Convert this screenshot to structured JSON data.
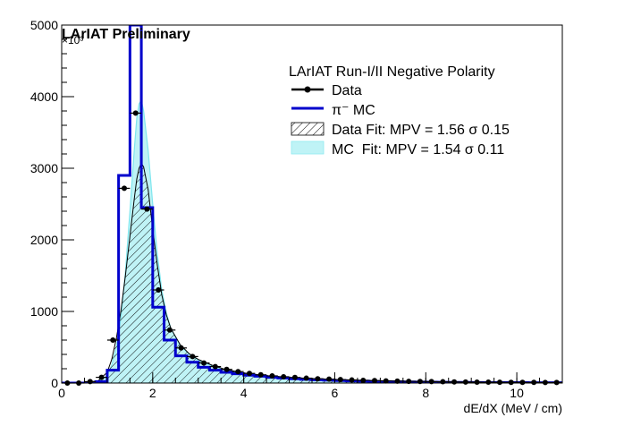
{
  "chart_data": {
    "type": "histogram",
    "title": "LArIAT Preliminary",
    "exponent_label": "×10³",
    "xlabel": "dE/dX (MeV / cm)",
    "ylabel": "",
    "xlim": [
      0,
      11
    ],
    "ylim": [
      0,
      5000
    ],
    "x_ticks": [
      0,
      2,
      4,
      6,
      8,
      10
    ],
    "x_minor_step": 0.5,
    "y_ticks": [
      0,
      1000,
      2000,
      3000,
      4000,
      5000
    ],
    "y_minor_step": 200,
    "legend": {
      "placement": "top-right",
      "header": "LArIAT Run-I/II Negative Polarity",
      "entries": [
        {
          "name": "Data",
          "style": "data-points"
        },
        {
          "name": "π⁻ MC",
          "style": "line"
        },
        {
          "name": "Data Fit: MPV = 1.56 σ 0.15",
          "style": "hatched"
        },
        {
          "name": "MC  Fit: MPV = 1.54 σ 0.11",
          "style": "cyan-fill"
        }
      ]
    },
    "bin_edges": [
      0,
      0.25,
      0.5,
      0.75,
      1.0,
      1.25,
      1.5,
      1.75,
      2.0,
      2.25,
      2.5,
      2.75,
      3.0,
      3.25,
      3.5,
      3.75,
      4.0,
      4.25,
      4.5,
      4.75,
      5.0,
      5.25,
      5.5,
      5.75,
      6.0,
      6.25,
      6.5,
      6.75,
      7.0,
      7.25,
      7.5,
      7.75,
      8.0,
      8.25,
      8.5,
      8.75,
      9.0,
      9.25,
      9.5,
      9.75,
      10.0,
      10.25,
      10.5,
      10.75,
      11.0
    ],
    "series": [
      {
        "name": "π⁻ MC",
        "kind": "step",
        "color": "#0000cc",
        "values": [
          0,
          0,
          0,
          20,
          180,
          2900,
          5000,
          2450,
          1060,
          600,
          380,
          290,
          220,
          180,
          150,
          130,
          110,
          95,
          80,
          70,
          60,
          52,
          45,
          40,
          35,
          30,
          26,
          22,
          20,
          18,
          16,
          14,
          12,
          11,
          10,
          9,
          8,
          7,
          7,
          6,
          6,
          5,
          5,
          5
        ]
      },
      {
        "name": "Data",
        "kind": "points",
        "color": "#000000",
        "x": [
          0.125,
          0.375,
          0.625,
          0.875,
          1.125,
          1.375,
          1.625,
          1.875,
          2.125,
          2.375,
          2.625,
          2.875,
          3.125,
          3.375,
          3.625,
          3.875,
          4.125,
          4.375,
          4.625,
          4.875,
          5.125,
          5.375,
          5.625,
          5.875,
          6.125,
          6.375,
          6.625,
          6.875,
          7.125,
          7.375,
          7.625,
          7.875,
          8.125,
          8.375,
          8.625,
          8.875,
          9.125,
          9.375,
          9.625,
          9.875,
          10.125,
          10.375,
          10.625,
          10.875
        ],
        "y": [
          0,
          0,
          20,
          80,
          600,
          2720,
          3770,
          2430,
          1300,
          740,
          490,
          370,
          280,
          230,
          190,
          160,
          135,
          115,
          100,
          88,
          78,
          68,
          60,
          54,
          48,
          43,
          38,
          34,
          30,
          27,
          24,
          22,
          20,
          18,
          16,
          14,
          13,
          12,
          11,
          10,
          9,
          9,
          8,
          8
        ]
      }
    ],
    "fits": [
      {
        "name": "Data Fit",
        "mpv": 1.56,
        "sigma": 0.15,
        "peak": 3070,
        "style": "hatched",
        "curve_x": [
          0,
          0.5,
          0.8,
          1.0,
          1.1,
          1.2,
          1.3,
          1.4,
          1.5,
          1.6,
          1.65,
          1.7,
          1.75,
          1.8,
          1.9,
          2.0,
          2.1,
          2.2,
          2.3,
          2.4,
          2.6,
          2.8,
          3.0,
          3.3,
          3.6,
          4.0,
          4.5,
          5.0,
          5.5,
          6.0,
          7.0,
          8.0,
          9.0,
          10.0,
          11.0
        ],
        "curve_y": [
          0,
          5,
          30,
          150,
          330,
          620,
          1000,
          1500,
          2050,
          2600,
          2850,
          3000,
          3070,
          3020,
          2700,
          2150,
          1650,
          1230,
          950,
          760,
          540,
          410,
          330,
          250,
          190,
          140,
          100,
          75,
          58,
          45,
          30,
          20,
          14,
          10,
          7
        ]
      },
      {
        "name": "MC Fit",
        "mpv": 1.54,
        "sigma": 0.11,
        "peak": 3950,
        "style": "cyan-fill",
        "curve_x": [
          0,
          0.5,
          0.8,
          1.0,
          1.1,
          1.2,
          1.3,
          1.4,
          1.5,
          1.6,
          1.65,
          1.7,
          1.75,
          1.8,
          1.9,
          2.0,
          2.1,
          2.2,
          2.3,
          2.4,
          2.6,
          2.8,
          3.0,
          3.3,
          3.6,
          4.0,
          4.5,
          5.0,
          5.5,
          6.0,
          7.0,
          8.0,
          9.0,
          10.0,
          11.0
        ],
        "curve_y": [
          0,
          3,
          20,
          100,
          250,
          500,
          900,
          1550,
          2400,
          3300,
          3700,
          3900,
          3950,
          3800,
          3250,
          2500,
          1800,
          1300,
          980,
          760,
          530,
          400,
          320,
          240,
          180,
          130,
          95,
          70,
          54,
          42,
          28,
          19,
          13,
          9,
          6
        ]
      }
    ]
  }
}
